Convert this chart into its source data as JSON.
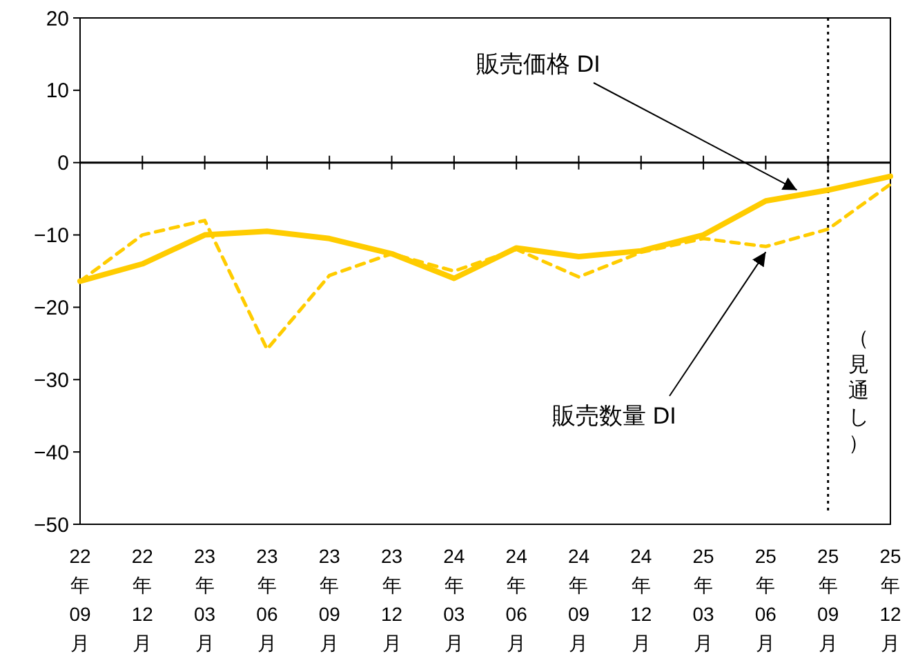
{
  "chart_data": {
    "type": "line",
    "categories": [
      "22年09月",
      "22年12月",
      "23年03月",
      "23年06月",
      "23年09月",
      "23年12月",
      "24年03月",
      "24年06月",
      "24年09月",
      "24年12月",
      "25年03月",
      "25年06月",
      "25年09月",
      "25年12月"
    ],
    "series": [
      {
        "name": "販売価格 DI",
        "color": "#ffcc00",
        "line_style": "solid",
        "values": [
          -16.4,
          -14,
          -10,
          -9.5,
          -10.5,
          -12.6,
          -16,
          -11.8,
          -13,
          -12.2,
          -10,
          -5.3,
          -3.8,
          -1.9
        ]
      },
      {
        "name": "販売数量 DI",
        "color": "#ffcc00",
        "line_style": "dashed",
        "values": [
          -16.4,
          -10,
          -8,
          -25.8,
          -15.6,
          -12.6,
          -15,
          -12,
          -15.8,
          -12.4,
          -10.5,
          -11.6,
          -9.2,
          -3
        ]
      }
    ],
    "ylim": [
      -50,
      20
    ],
    "yticks": [
      20,
      10,
      0,
      {
        "value": -10,
        "label": "−10"
      },
      {
        "value": -20,
        "label": "−20"
      },
      {
        "value": -30,
        "label": "−30"
      },
      {
        "value": -40,
        "label": "−40"
      },
      {
        "value": -50,
        "label": "−50"
      }
    ],
    "ref_lines": [
      {
        "axis": "x",
        "value": "25年09月",
        "label": "（見通し）",
        "line_style": "dotted",
        "color": "#000000"
      }
    ]
  }
}
